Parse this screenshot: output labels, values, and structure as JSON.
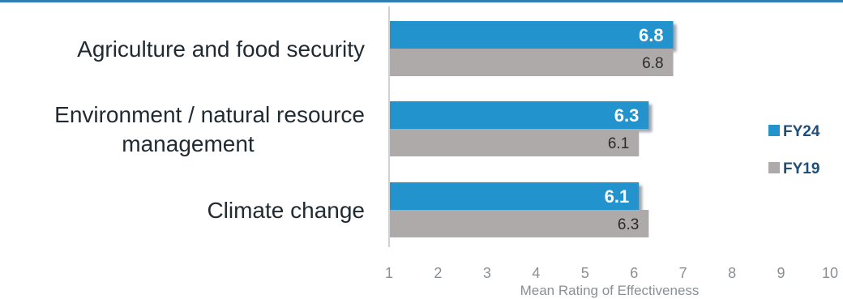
{
  "colors": {
    "fy24": "#2393cc",
    "fy19": "#aeaaaa",
    "top_rule": "#2f7fb5",
    "axis_line": "#cfd3d6",
    "shadow": "#9aa3aa"
  },
  "chart_data": {
    "type": "bar",
    "orientation": "horizontal",
    "categories": [
      [
        "Agriculture and food security"
      ],
      [
        "Environment / natural resource",
        "management"
      ],
      [
        "Climate change"
      ]
    ],
    "series": [
      {
        "name": "FY24",
        "values": [
          6.8,
          6.3,
          6.1
        ],
        "labels": [
          "6.8",
          "6.3",
          "6.1"
        ]
      },
      {
        "name": "FY19",
        "values": [
          6.8,
          6.1,
          6.3
        ],
        "labels": [
          "6.8",
          "6.1",
          "6.3"
        ]
      }
    ],
    "xlim": [
      1,
      10
    ],
    "ticks": [
      "1",
      "2",
      "3",
      "4",
      "5",
      "6",
      "7",
      "8",
      "9",
      "10"
    ],
    "xlabel": "Mean Rating of Effectiveness",
    "title": "",
    "legend_position": "right",
    "grid": false
  }
}
